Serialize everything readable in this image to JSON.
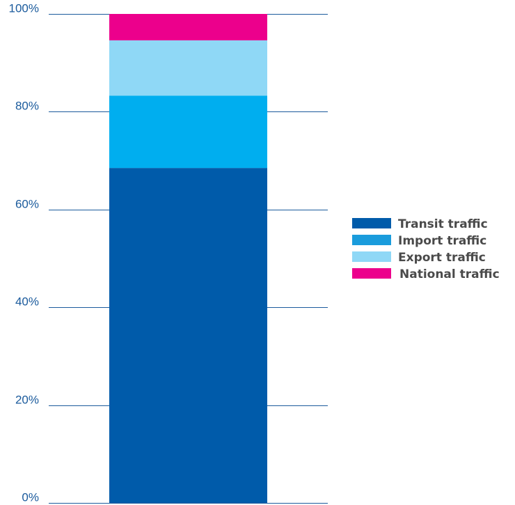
{
  "chart_data": {
    "type": "bar",
    "stacked": true,
    "categories": [
      ""
    ],
    "series": [
      {
        "name": "Transit traffic",
        "values": [
          68.5
        ],
        "color": "#005BAA"
      },
      {
        "name": "Import traffic",
        "values": [
          14.8
        ],
        "color": "#00AEEF"
      },
      {
        "name": "Export traffic",
        "values": [
          11.3
        ],
        "color": "#8FD8F6"
      },
      {
        "name": "National traffic",
        "values": [
          5.4
        ],
        "color": "#EC008C"
      }
    ],
    "legend_colors": [
      "#005BAA",
      "#1A9CDC",
      "#8FD8F6",
      "#EC008C"
    ],
    "title": "",
    "xlabel": "",
    "ylabel": "",
    "ylim": [
      0,
      100
    ],
    "yticks": [
      0,
      20,
      40,
      60,
      80,
      100
    ],
    "ytick_labels": [
      "0%",
      "20%",
      "40%",
      "60%",
      "80%",
      "100%"
    ],
    "grid": true,
    "legend": "right",
    "gridline_color": "#1a5a9c"
  }
}
